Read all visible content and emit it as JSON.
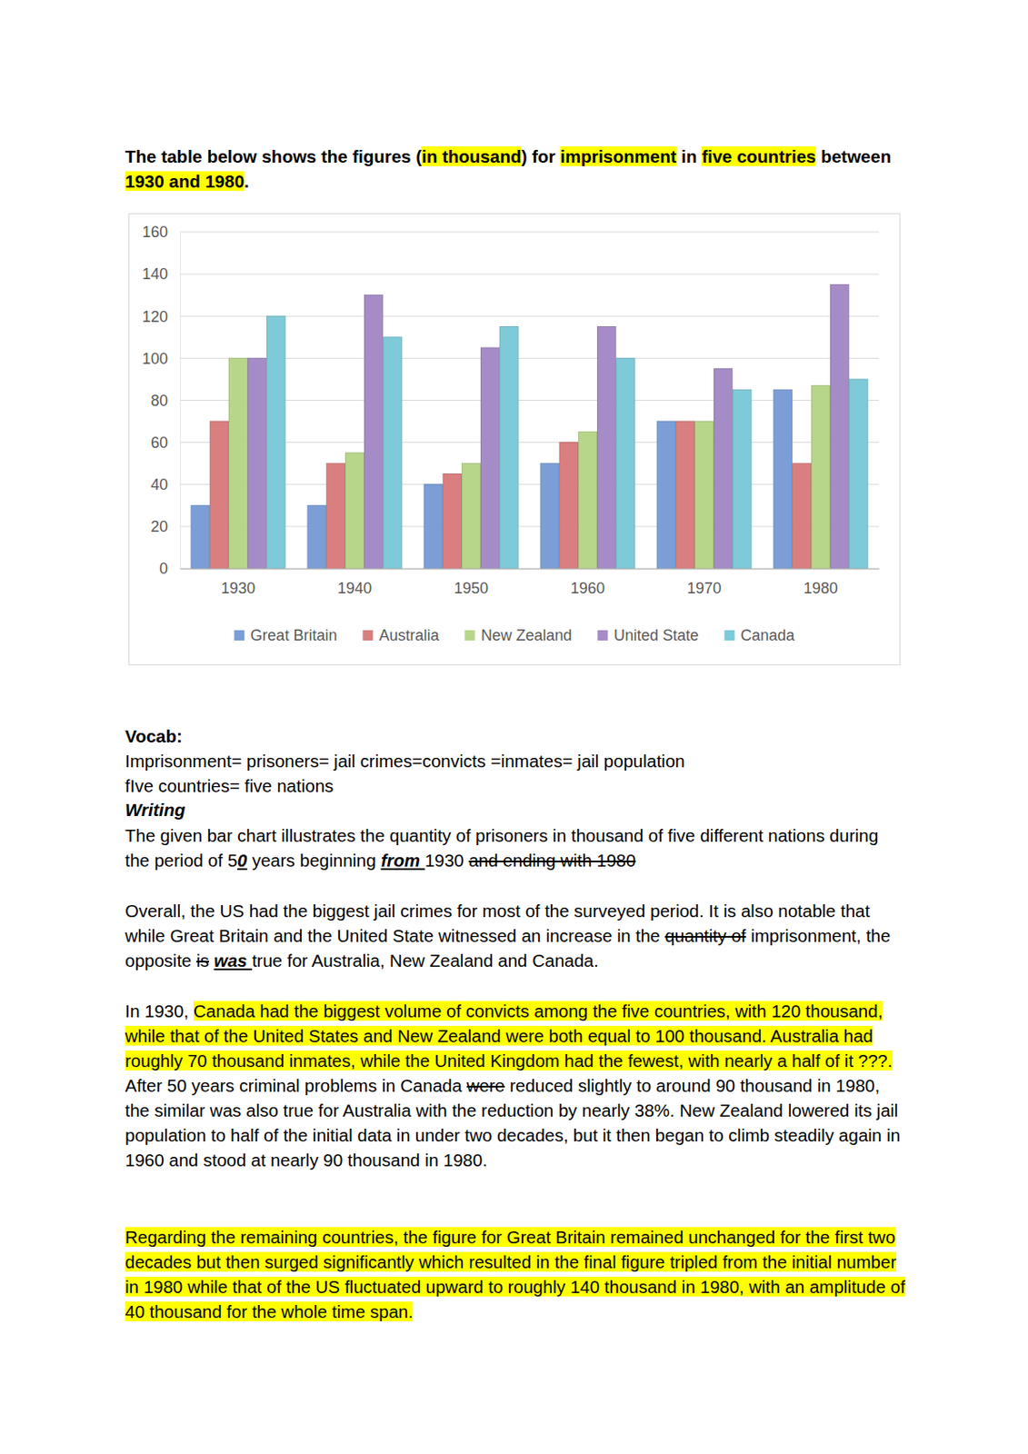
{
  "chart_data": {
    "type": "bar",
    "categories": [
      "1930",
      "1940",
      "1950",
      "1960",
      "1970",
      "1980"
    ],
    "series": [
      {
        "name": "Great Britain",
        "color": "#7b9ed6",
        "values": [
          30,
          30,
          40,
          50,
          70,
          85
        ]
      },
      {
        "name": "Australia",
        "color": "#d97f7f",
        "values": [
          70,
          50,
          45,
          60,
          70,
          50
        ]
      },
      {
        "name": "New Zealand",
        "color": "#b8d68a",
        "values": [
          100,
          55,
          50,
          65,
          70,
          87
        ]
      },
      {
        "name": "United State",
        "color": "#a68cc6",
        "values": [
          100,
          130,
          105,
          115,
          95,
          135
        ]
      },
      {
        "name": "Canada",
        "color": "#7ecad8",
        "values": [
          120,
          110,
          115,
          100,
          85,
          90
        ]
      }
    ],
    "ylim": [
      0,
      160
    ],
    "yticks": [
      0,
      20,
      40,
      60,
      80,
      100,
      120,
      140,
      160
    ],
    "grid": true,
    "legend": "bottom"
  },
  "document": {
    "heading": {
      "runs": [
        "The table below shows the figures (",
        {
          "text": "in thousand",
          "style": "highlight"
        },
        ") for ",
        {
          "text": "imprisonment",
          "style": "highlight"
        },
        " in ",
        {
          "text": "five countries",
          "style": "highlight"
        },
        " between ",
        {
          "text": "1930 and 1980",
          "style": "highlight"
        },
        "."
      ]
    },
    "vocab": {
      "title": "Vocab:",
      "lines": [
        "Imprisonment= prisoners= jail crimes=convicts =inmates= jail population",
        "fIve countries= five nations"
      ]
    },
    "writing": {
      "title": "Writing",
      "paragraphs": [
        {
          "runs": [
            "The given bar chart illustrates the quantity of prisoners in thousand of five different nations during the period of 5",
            {
              "text": "0",
              "style": "bold italic underline"
            },
            " years beginning ",
            {
              "text": "from ",
              "style": "bold italic underline"
            },
            "1930 ",
            {
              "text": "and ending with 1980",
              "style": "strike"
            }
          ]
        },
        {
          "runs": [
            "Overall, the US had the biggest jail crimes for most of the surveyed period. It is also notable that while Great Britain and the United State witnessed an increase in the ",
            {
              "text": "quantity of",
              "style": "strike"
            },
            " imprisonment, the opposite ",
            {
              "text": "is",
              "style": "strike"
            },
            " ",
            {
              "text": "was ",
              "style": "bold italic underline"
            },
            "true for Australia, New Zealand and Canada."
          ]
        },
        {
          "runs": [
            "In 1930, ",
            {
              "text": "Canada had the biggest volume of convicts among the five countries, with 120 thousand, while that of the United States and New Zealand were both equal to 100 thousand. Australia had roughly 70 thousand inmates, while the United Kingdom had the fewest, with nearly a half of it ???.",
              "style": "highlight"
            },
            " After 50 years criminal problems in Canada ",
            {
              "text": "were",
              "style": "strike"
            },
            " reduced slightly to around 90 thousand in 1980, the similar was also true for Australia with the reduction by nearly 38%. New Zealand lowered its jail population to half of the initial data in under two decades, but it then began to climb steadily again in 1960 and stood at nearly 90 thousand in 1980."
          ]
        },
        {
          "runs": [
            {
              "text": "Regarding the remaining countries, the figure for Great Britain remained unchanged for the first two decades but then surged significantly which resulted in the final figure tripled from the initial number in 1980 while that of the US fluctuated upward to roughly 140 thousand in 1980, with an amplitude of 40 thousand for the whole time span.",
              "style": "highlight"
            }
          ]
        }
      ]
    }
  }
}
